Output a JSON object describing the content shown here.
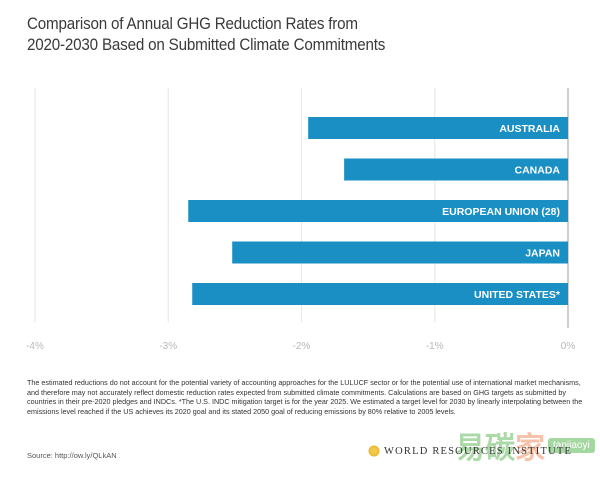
{
  "chart_data": {
    "type": "bar",
    "orientation": "horizontal",
    "title": "Comparison of Annual GHG Reduction Rates from 2020-2030 Based on Submitted Climate Commitments",
    "title_lines": [
      "Comparison of Annual GHG Reduction Rates from",
      "2020-2030 Based on Submitted Climate Commitments"
    ],
    "categories": [
      "AUSTRALIA",
      "CANADA",
      "EUROPEAN UNION (28)",
      "JAPAN",
      "UNITED STATES*"
    ],
    "values": [
      -1.95,
      -1.68,
      -2.85,
      -2.52,
      -2.82
    ],
    "unit": "%",
    "xlabel": "",
    "ylabel": "",
    "xlim": [
      -4,
      0
    ],
    "x_ticks": [
      -4,
      -3,
      -2,
      -1,
      0
    ],
    "x_tick_labels": [
      "-4%",
      "-3%",
      "-2%",
      "-1%",
      "0%"
    ],
    "grid": true,
    "legend": "none",
    "bar_color": "#1a8fc4"
  },
  "footer": {
    "notes": "The estimated reductions do not account for the potential variety of accounting approaches for the LULUCF sector or for the potential use of international market mechanisms, and therefore may not accurately reflect domestic reduction rates expected from submitted climate commitments. Calculations are based on GHG targets as submitted by countries in their pre-2020 pledges and INDCs. *The U.S. INDC mitigation target is for the year 2025. We estimated a target level for 2030 by linearly interpolating between the emissions level reached if the US achieves its 2020 goal and its stated 2050 goal of reducing emissions by 80% relative to 2005 levels.",
    "source": "Source: http://ow.ly/QLkAN",
    "organization": "WORLD RESOURCES INSTITUTE"
  },
  "watermark": {
    "chars": [
      "易",
      "碳",
      "家"
    ],
    "tag": "tanjiaoyi"
  }
}
